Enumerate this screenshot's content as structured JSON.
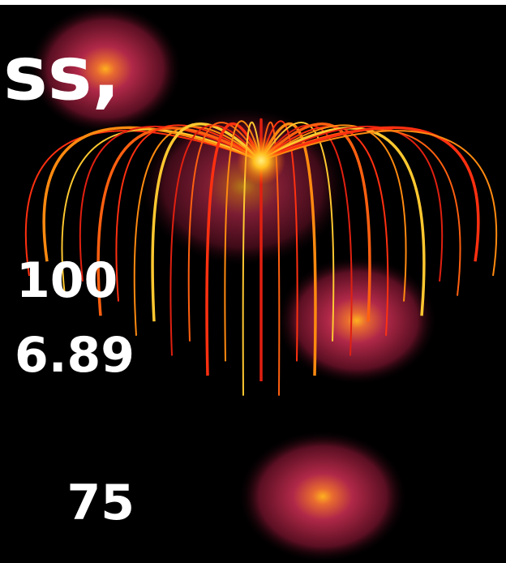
{
  "texts": {
    "heading_fragment": "ss,",
    "line1": "100",
    "line2": "6.89",
    "line3": "75"
  }
}
